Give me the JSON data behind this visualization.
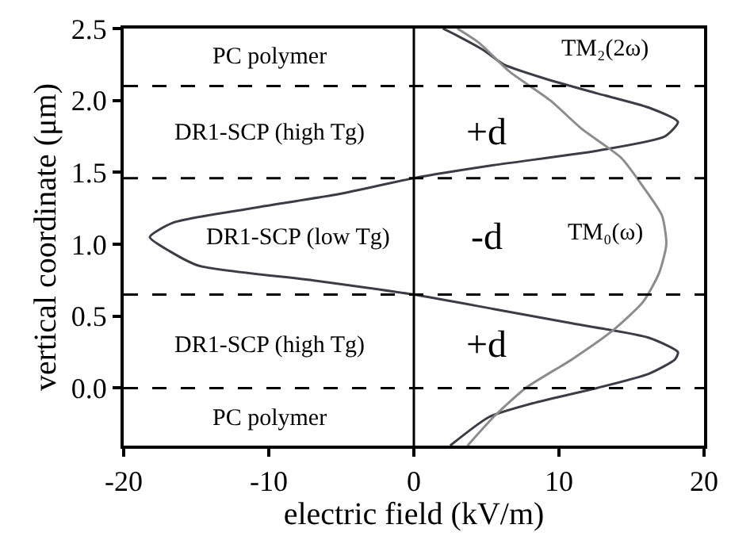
{
  "chart_data": {
    "type": "line",
    "xlabel": "electric field (kV/m)",
    "ylabel": "vertical coordinate (μm)",
    "xlim": [
      -20,
      20
    ],
    "xticks": [
      -20,
      -10,
      0,
      10,
      20
    ],
    "ylim": [
      -0.4,
      2.5
    ],
    "yticks": [
      {
        "value": 0,
        "label": "0.0"
      },
      0.5,
      {
        "value": 1,
        "label": "1.0"
      },
      1.5,
      {
        "value": 2,
        "label": "2.0"
      },
      2.5
    ],
    "legend": false,
    "marker": "none",
    "line_style": "solid",
    "series": [
      {
        "name": "TM₂(2ω)",
        "color": "#3c3c46",
        "x": [
          2.5,
          5.2,
          8.4,
          12.6,
          16.2,
          18,
          18.2,
          16.2,
          10.9,
          5.5,
          0,
          -7,
          -14.8,
          -16.8,
          -18.2,
          -16.6,
          -11.2,
          -5.1,
          0,
          5.5,
          12.6,
          17.3,
          18.2,
          16.2,
          12.6,
          9.1,
          6.2,
          4.8,
          3,
          2
        ],
        "values": [
          -0.4,
          -0.2,
          -0.1,
          0,
          0.1,
          0.2,
          0.25,
          0.35,
          0.45,
          0.55,
          0.65,
          0.75,
          0.85,
          0.95,
          1.05,
          1.15,
          1.25,
          1.35,
          1.46,
          1.55,
          1.65,
          1.75,
          1.85,
          1.95,
          2.05,
          2.15,
          2.25,
          2.35,
          2.45,
          2.5
        ]
      },
      {
        "name": "TM₀(ω)",
        "color": "#8c8c8c",
        "x": [
          3.7,
          5.5,
          7.7,
          10.9,
          13.7,
          15.8,
          16.9,
          17.4,
          17.1,
          15.8,
          14.3,
          11.6,
          9.4,
          6.6,
          4.5,
          3
        ],
        "values": [
          -0.4,
          -0.2,
          0,
          0.2,
          0.4,
          0.6,
          0.8,
          1.0,
          1.2,
          1.4,
          1.6,
          1.8,
          2.0,
          2.2,
          2.4,
          2.5
        ]
      }
    ],
    "ref_lines": [
      {
        "axis": "y",
        "value": 0,
        "color": "#000000",
        "line_style": "dashed"
      },
      {
        "axis": "y",
        "value": 0.65,
        "color": "#000000",
        "line_style": "dashed"
      },
      {
        "axis": "y",
        "value": 1.46,
        "color": "#000000",
        "line_style": "dashed"
      },
      {
        "axis": "y",
        "value": 2.1,
        "color": "#000000",
        "line_style": "dashed"
      },
      {
        "axis": "x",
        "value": 0,
        "color": "#000000",
        "line_style": "solid"
      }
    ],
    "annotations": [
      "PC polymer",
      "DR1-SCP (high Tg)",
      "+d",
      "DR1-SCP (low Tg)",
      "-d",
      "DR1-SCP (high Tg)",
      "+d",
      "PC polymer"
    ]
  }
}
